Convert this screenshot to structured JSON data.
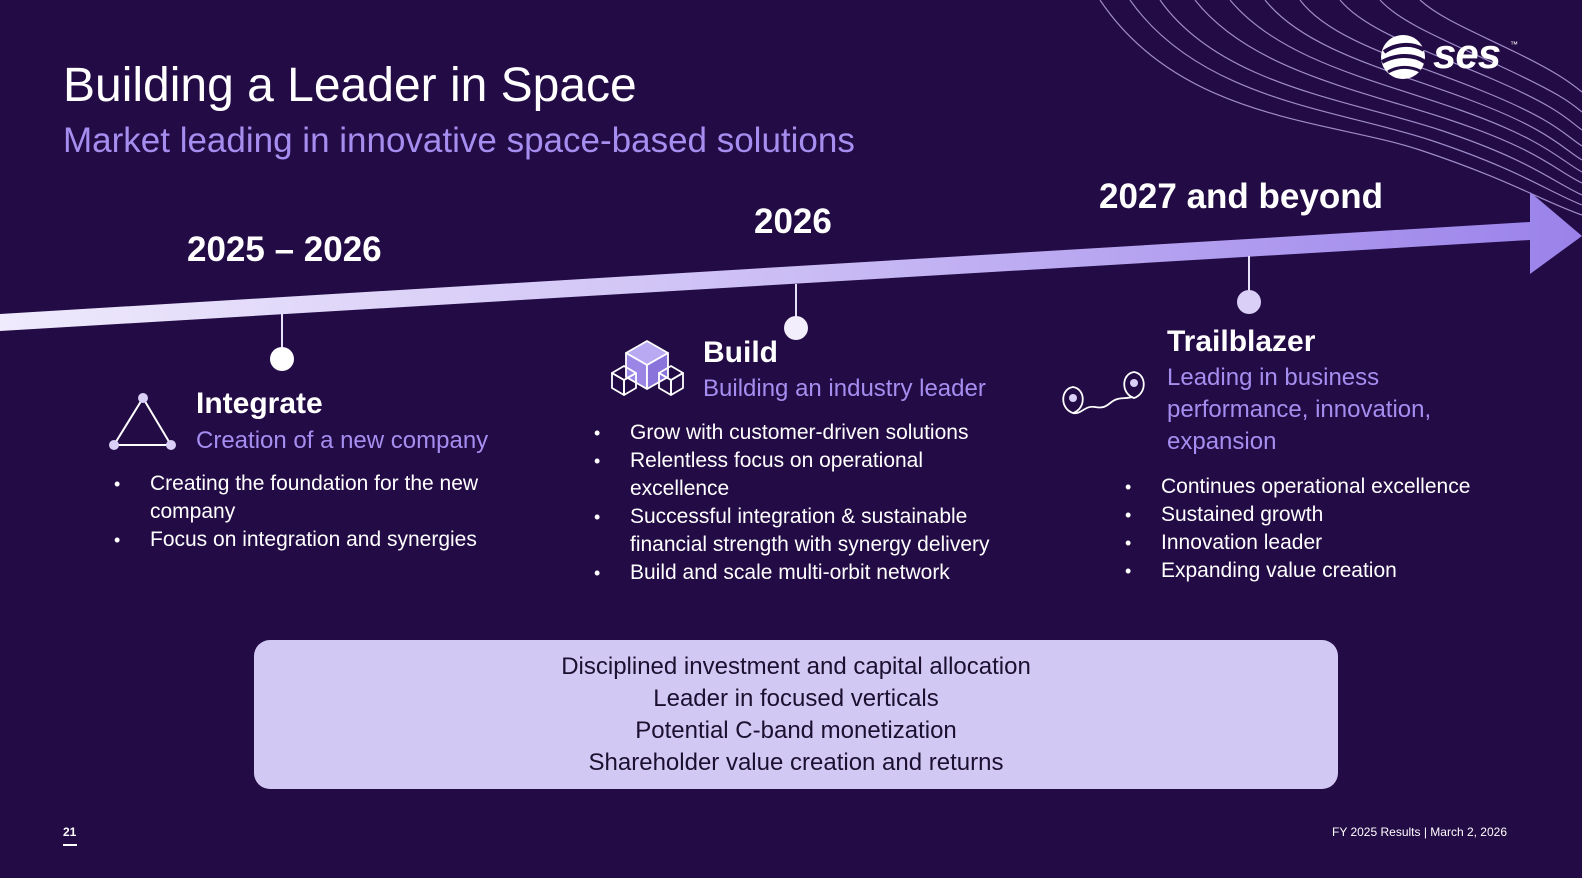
{
  "header": {
    "title": "Building a Leader in Space",
    "subtitle": "Market leading in innovative space-based solutions"
  },
  "logo": {
    "text": "ses",
    "tm": "™",
    "icon": "ses-globe-icon"
  },
  "timeline": {
    "stages": [
      {
        "year": "2025 – 2026",
        "title": "Integrate",
        "subtitle": "Creation of a new company",
        "icon": "triangle-network-icon",
        "bullets": [
          "Creating the foundation for the new company",
          "Focus on integration and synergies"
        ]
      },
      {
        "year": "2026",
        "title": "Build",
        "subtitle": "Building an industry leader",
        "icon": "cubes-icon",
        "bullets": [
          "Grow with customer-driven solutions",
          "Relentless focus on operational excellence",
          "Successful integration & sustainable financial strength with synergy delivery",
          "Build and scale multi-orbit network"
        ]
      },
      {
        "year": "2027 and beyond",
        "title": "Trailblazer",
        "subtitle": "Leading in business performance, innovation, expansion",
        "icon": "route-pins-icon",
        "bullets": [
          "Continues operational excellence",
          "Sustained growth",
          "Innovation leader",
          "Expanding value creation"
        ]
      }
    ]
  },
  "summary_box": {
    "lines": [
      "Disciplined investment and capital allocation",
      "Leader in focused verticals",
      "Potential C-band monetization",
      "Shareholder value creation and returns"
    ]
  },
  "footer": {
    "page_number": "21",
    "text": "FY 2025 Results | March 2, 2026"
  },
  "colors": {
    "background": "#230b45",
    "accent": "#a68ef0",
    "arrow_end": "#9a82ea",
    "box": "#d2c8f4"
  }
}
